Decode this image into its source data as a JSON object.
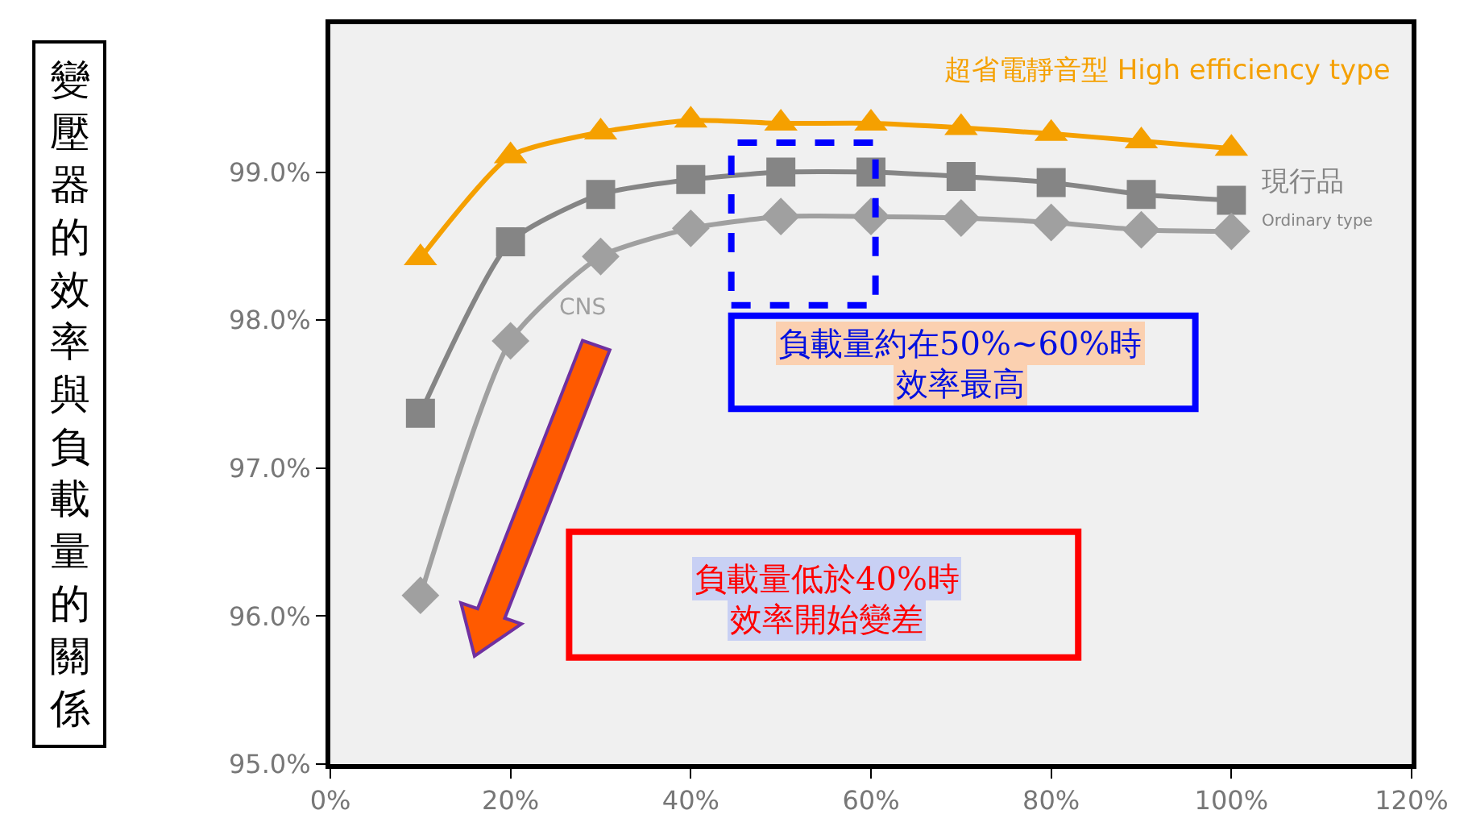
{
  "chart_data": {
    "type": "line",
    "title": "變壓器的效率與負載量的關係",
    "x": [
      10,
      20,
      30,
      40,
      50,
      60,
      70,
      80,
      90,
      100
    ],
    "series": [
      {
        "name": "超省電靜音型 High efficiency type",
        "color": "#f5a000",
        "marker": "triangle",
        "values": [
          98.42,
          99.11,
          99.27,
          99.35,
          99.33,
          99.33,
          99.3,
          99.26,
          99.21,
          99.16
        ]
      },
      {
        "name": "現行品 Ordinary type",
        "color": "#858585",
        "marker": "square",
        "values": [
          97.37,
          98.53,
          98.85,
          98.95,
          99.0,
          99.0,
          98.97,
          98.93,
          98.85,
          98.81
        ]
      },
      {
        "name": "CNS",
        "color": "#a0a0a0",
        "marker": "diamond",
        "values": [
          96.14,
          97.86,
          98.43,
          98.62,
          98.7,
          98.7,
          98.69,
          98.66,
          98.61,
          98.6
        ]
      }
    ],
    "xlim": [
      0,
      120
    ],
    "xticks": [
      {
        "value": 0,
        "label": "0%"
      },
      {
        "value": 20,
        "label": "20%"
      },
      {
        "value": 40,
        "label": "40%"
      },
      {
        "value": 60,
        "label": "60%"
      },
      {
        "value": 80,
        "label": "80%"
      },
      {
        "value": 100,
        "label": "100%"
      },
      {
        "value": 120,
        "label": "120%"
      }
    ],
    "ylim": [
      95,
      100
    ],
    "yticks": [
      {
        "value": 95,
        "label": "95.0%"
      },
      {
        "value": 96,
        "label": "96.0%"
      },
      {
        "value": 97,
        "label": "97.0%"
      },
      {
        "value": 98,
        "label": "98.0%"
      },
      {
        "value": 99,
        "label": "99.0%"
      }
    ],
    "annotations": [
      "負載量約在50%~60%時",
      "效率最高",
      "負載量低於40%時",
      "效率開始變差"
    ],
    "grid": false,
    "legend": false,
    "line_style": "solid"
  }
}
